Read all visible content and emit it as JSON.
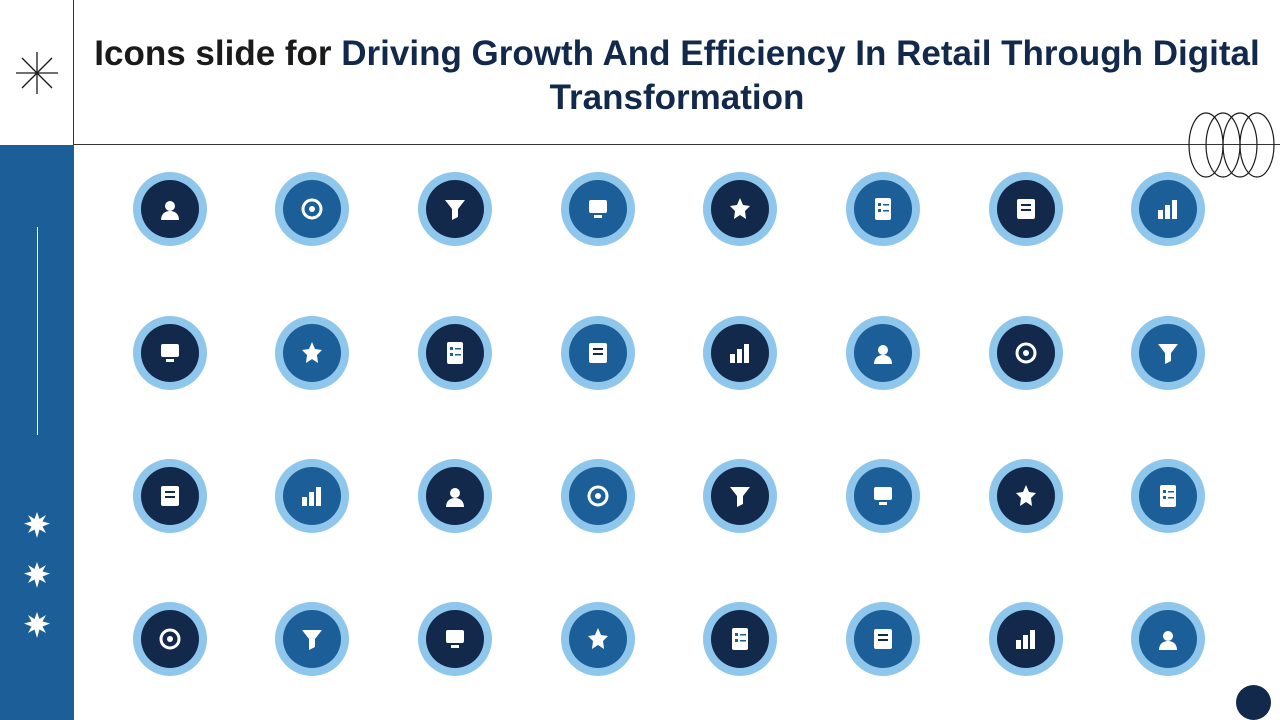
{
  "title": {
    "prefix": "Icons slide for ",
    "accent": "Driving Growth And Efficiency In Retail Through Digital Transformation"
  },
  "colors": {
    "sidebar": "#1b5e98",
    "badge_ring": "#8ec6ec",
    "badge_dark": "#13294b",
    "badge_mid": "#1b5e98"
  },
  "icons": [
    {
      "name": "customer-network-icon",
      "style": "dark"
    },
    {
      "name": "digital-payment-network-icon",
      "style": "mid"
    },
    {
      "name": "online-report-icon",
      "style": "dark"
    },
    {
      "name": "idea-computer-icon",
      "style": "mid"
    },
    {
      "name": "mind-process-icon",
      "style": "dark"
    },
    {
      "name": "team-hierarchy-icon",
      "style": "mid"
    },
    {
      "name": "filter-check-icon",
      "style": "dark"
    },
    {
      "name": "checklist-clipboard-icon",
      "style": "mid"
    },
    {
      "name": "gears-cycle-icon",
      "style": "dark"
    },
    {
      "name": "user-management-icon",
      "style": "mid"
    },
    {
      "name": "inventory-search-icon",
      "style": "dark"
    },
    {
      "name": "workflow-steps-icon",
      "style": "mid"
    },
    {
      "name": "pos-terminal-icon",
      "style": "dark"
    },
    {
      "name": "diamond-icon",
      "style": "mid"
    },
    {
      "name": "shopping-cart-settings-icon",
      "style": "dark"
    },
    {
      "name": "calendar-cart-icon",
      "style": "mid"
    },
    {
      "name": "growth-arrows-icon",
      "style": "dark"
    },
    {
      "name": "financial-report-icon",
      "style": "mid"
    },
    {
      "name": "handshake-exchange-icon",
      "style": "dark"
    },
    {
      "name": "laptop-dashboard-icon",
      "style": "mid"
    },
    {
      "name": "calculator-check-icon",
      "style": "dark"
    },
    {
      "name": "information-hand-icon",
      "style": "mid"
    },
    {
      "name": "analytics-magnifier-icon",
      "style": "dark"
    },
    {
      "name": "settings-search-icon",
      "style": "mid"
    },
    {
      "name": "target-growth-icon",
      "style": "dark"
    },
    {
      "name": "team-group-icon",
      "style": "mid"
    },
    {
      "name": "circular-progress-icon",
      "style": "dark"
    },
    {
      "name": "retail-store-icon",
      "style": "mid"
    },
    {
      "name": "money-bag-icon",
      "style": "dark"
    },
    {
      "name": "customer-segments-icon",
      "style": "mid"
    },
    {
      "name": "feedback-monitor-icon",
      "style": "dark"
    },
    {
      "name": "robotic-arm-icon",
      "style": "mid"
    }
  ]
}
